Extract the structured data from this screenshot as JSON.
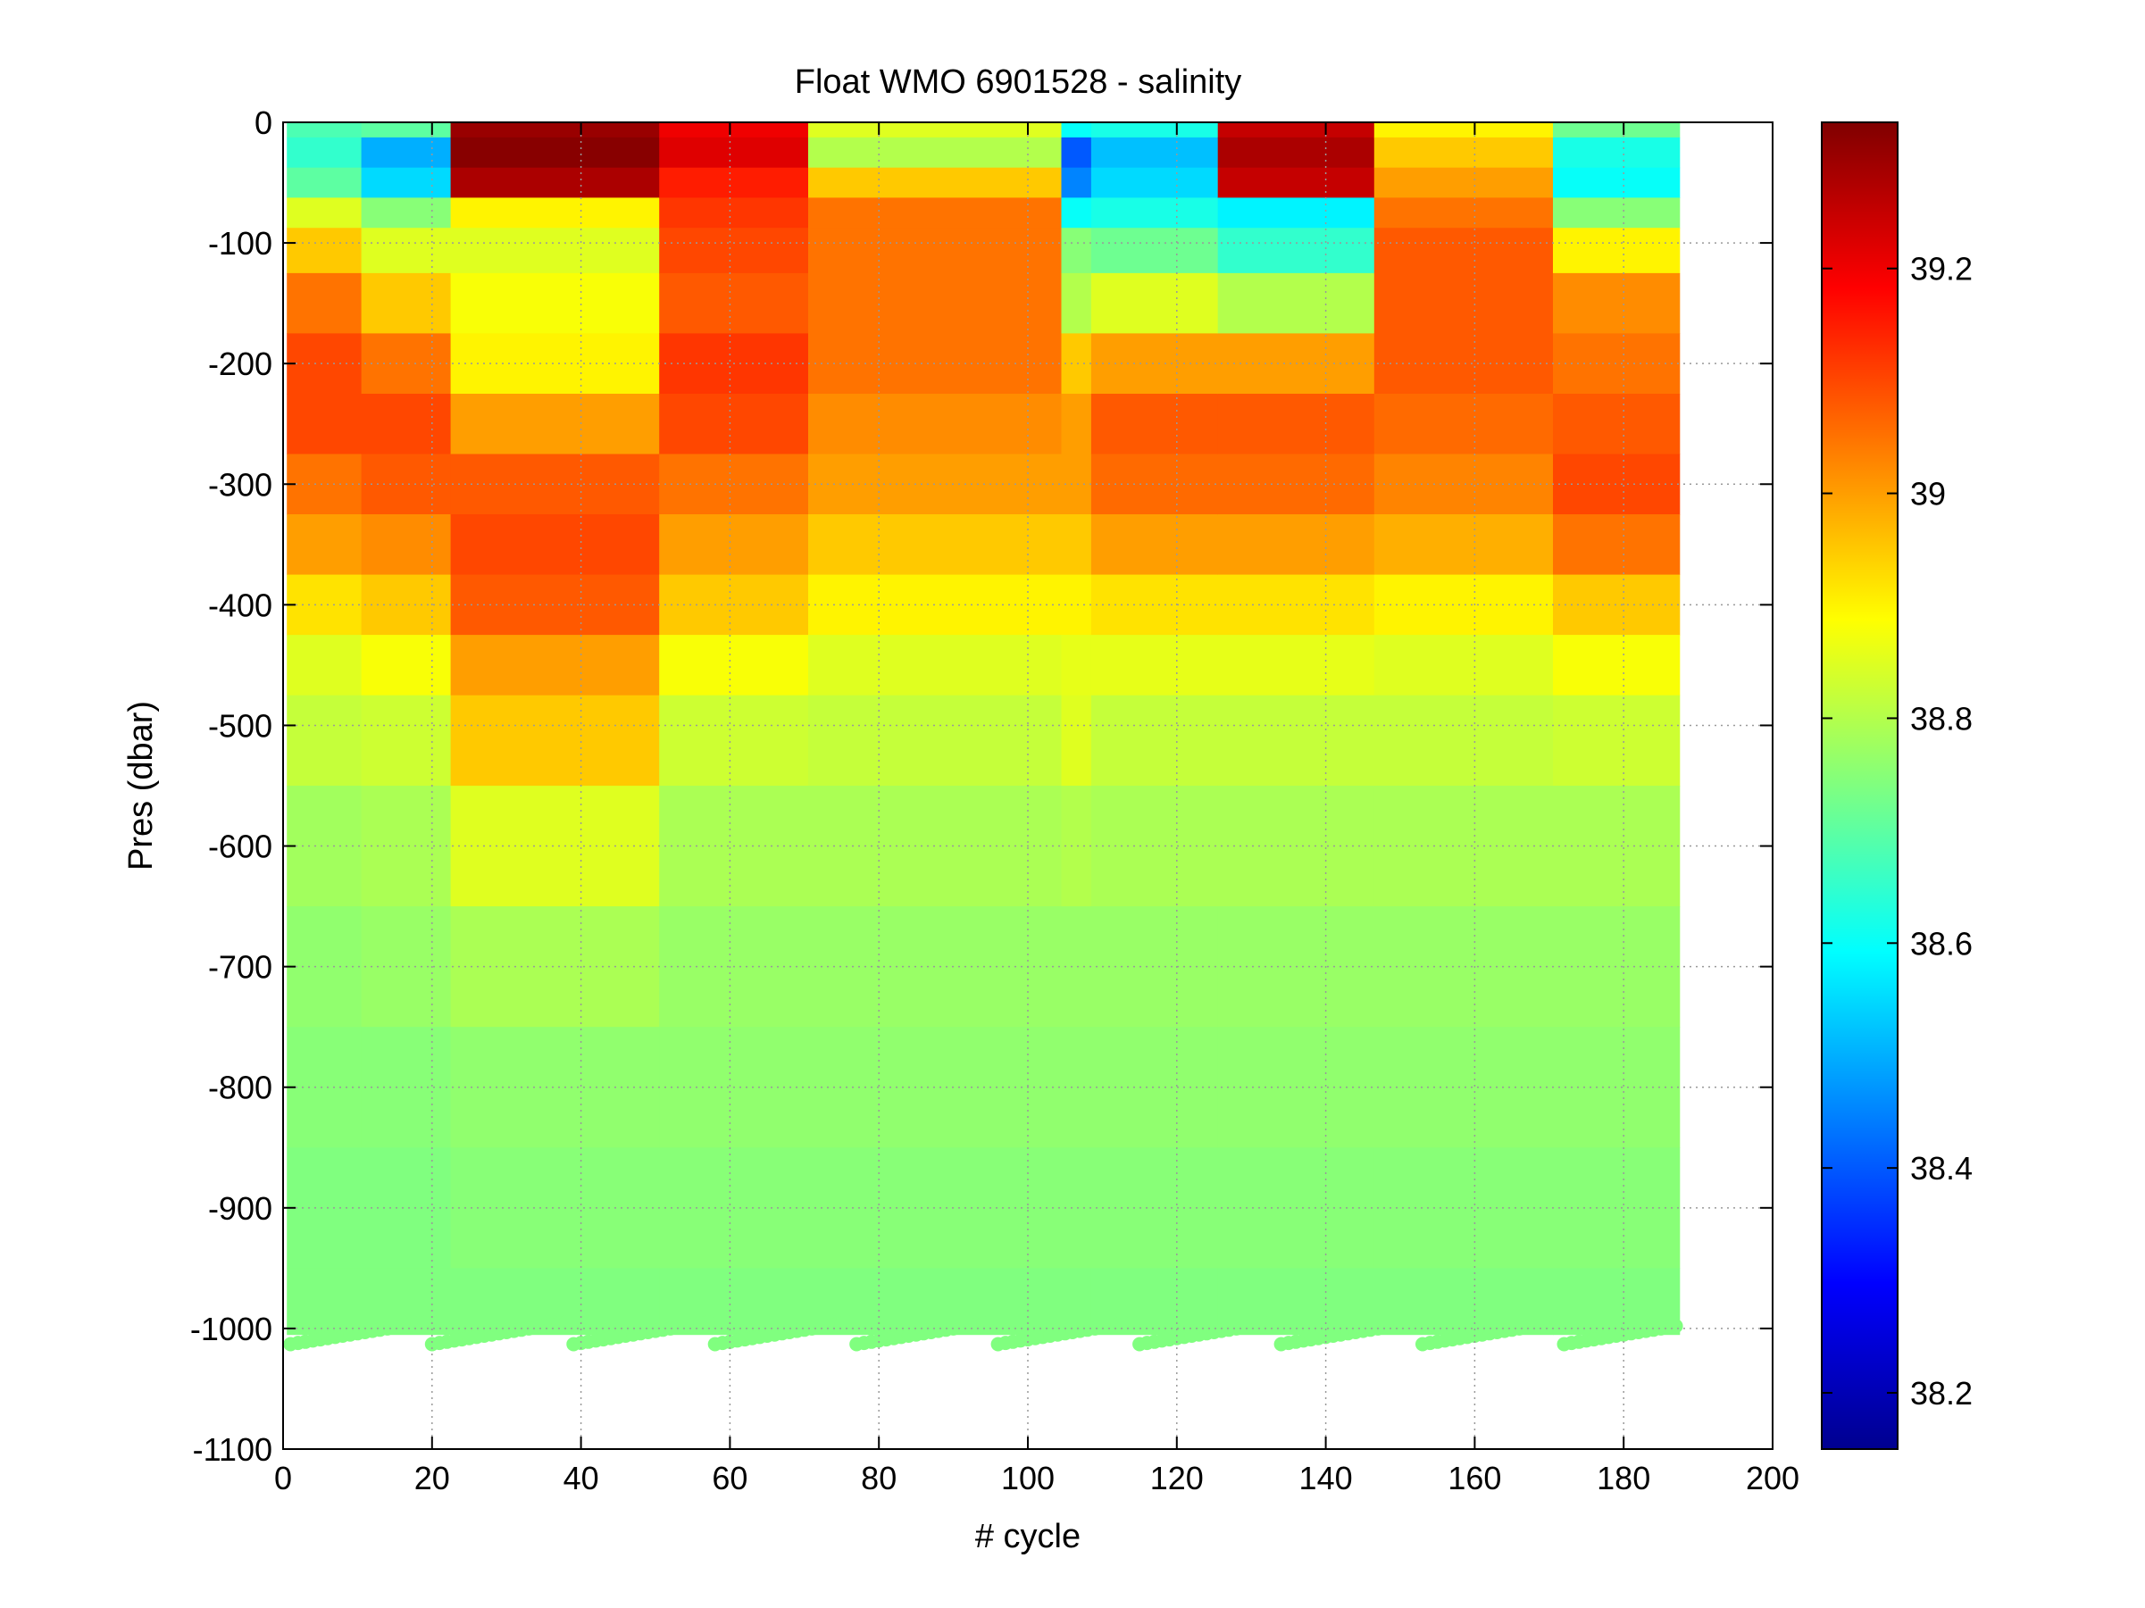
{
  "chart_data": {
    "type": "heatmap",
    "title": "Float WMO 6901528 - salinity",
    "xlabel": "# cycle",
    "ylabel": "Pres (dbar)",
    "xlim": [
      0,
      200
    ],
    "ylim": [
      -1100,
      0
    ],
    "x_ticks": [
      0,
      20,
      40,
      60,
      80,
      100,
      120,
      140,
      160,
      180,
      200
    ],
    "y_ticks": [
      0,
      -100,
      -200,
      -300,
      -400,
      -500,
      -600,
      -700,
      -800,
      -900,
      -1000,
      -1100
    ],
    "grid": "dotted",
    "colormap": "jet",
    "colorbar": {
      "range": [
        38.15,
        39.33
      ],
      "ticks": [
        38.2,
        38.4,
        38.6,
        38.8,
        39,
        39.2
      ],
      "tick_labels": [
        "38.2",
        "38.4",
        "38.6",
        "38.8",
        "39",
        "39.2"
      ]
    },
    "cycles": [
      1,
      187
    ],
    "profile_depths": [
      0,
      -25,
      -50,
      -75,
      -100,
      -150,
      -200,
      -250,
      -300,
      -350,
      -400,
      -450,
      -500,
      -600,
      -700,
      -800,
      -900,
      -1000
    ],
    "salinity_segments": [
      {
        "cycles": [
          1,
          10
        ],
        "values": [
          38.68,
          38.65,
          38.7,
          38.85,
          38.95,
          39.05,
          39.1,
          39.1,
          39.05,
          39.0,
          38.92,
          38.85,
          38.82,
          38.78,
          38.76,
          38.75,
          38.74,
          38.74
        ]
      },
      {
        "cycles": [
          11,
          22
        ],
        "values": [
          38.7,
          38.5,
          38.55,
          38.75,
          38.85,
          38.95,
          39.05,
          39.1,
          39.08,
          39.02,
          38.95,
          38.88,
          38.83,
          38.79,
          38.77,
          38.75,
          38.74,
          38.74
        ]
      },
      {
        "cycles": [
          23,
          50
        ],
        "values": [
          39.3,
          39.32,
          39.28,
          38.9,
          38.85,
          38.88,
          38.9,
          39.0,
          39.08,
          39.1,
          39.08,
          39.0,
          38.95,
          38.85,
          38.79,
          38.76,
          38.75,
          38.74
        ]
      },
      {
        "cycles": [
          51,
          70
        ],
        "values": [
          39.2,
          39.22,
          39.15,
          39.12,
          39.1,
          39.08,
          39.12,
          39.1,
          39.05,
          39.0,
          38.95,
          38.88,
          38.83,
          38.79,
          38.77,
          38.76,
          38.75,
          38.74
        ]
      },
      {
        "cycles": [
          71,
          104
        ],
        "values": [
          38.85,
          38.8,
          38.95,
          39.05,
          39.05,
          39.05,
          39.05,
          39.02,
          39.0,
          38.95,
          38.9,
          38.85,
          38.82,
          38.79,
          38.77,
          38.76,
          38.75,
          38.74
        ]
      },
      {
        "cycles": [
          105,
          108
        ],
        "values": [
          38.6,
          38.4,
          38.45,
          38.6,
          38.75,
          38.8,
          38.95,
          39.0,
          39.0,
          38.95,
          38.9,
          38.86,
          38.85,
          38.8,
          38.77,
          38.76,
          38.75,
          38.74
        ]
      },
      {
        "cycles": [
          109,
          125
        ],
        "values": [
          38.62,
          38.52,
          38.55,
          38.62,
          38.72,
          38.85,
          39.0,
          39.08,
          39.06,
          39.0,
          38.92,
          38.86,
          38.82,
          38.79,
          38.77,
          38.76,
          38.75,
          38.74
        ]
      },
      {
        "cycles": [
          126,
          146
        ],
        "values": [
          39.25,
          39.28,
          39.25,
          38.58,
          38.65,
          38.8,
          39.0,
          39.08,
          39.06,
          39.0,
          38.92,
          38.86,
          38.82,
          38.79,
          38.77,
          38.76,
          38.75,
          38.74
        ]
      },
      {
        "cycles": [
          147,
          170
        ],
        "values": [
          38.9,
          38.95,
          39.0,
          39.05,
          39.08,
          39.08,
          39.08,
          39.06,
          39.03,
          38.98,
          38.9,
          38.85,
          38.82,
          38.79,
          38.77,
          38.76,
          38.75,
          38.74
        ]
      },
      {
        "cycles": [
          171,
          187
        ],
        "values": [
          38.72,
          38.62,
          38.6,
          38.75,
          38.9,
          39.02,
          39.05,
          39.08,
          39.1,
          39.05,
          38.95,
          38.88,
          38.83,
          38.79,
          38.77,
          38.76,
          38.75,
          38.74
        ]
      }
    ]
  }
}
